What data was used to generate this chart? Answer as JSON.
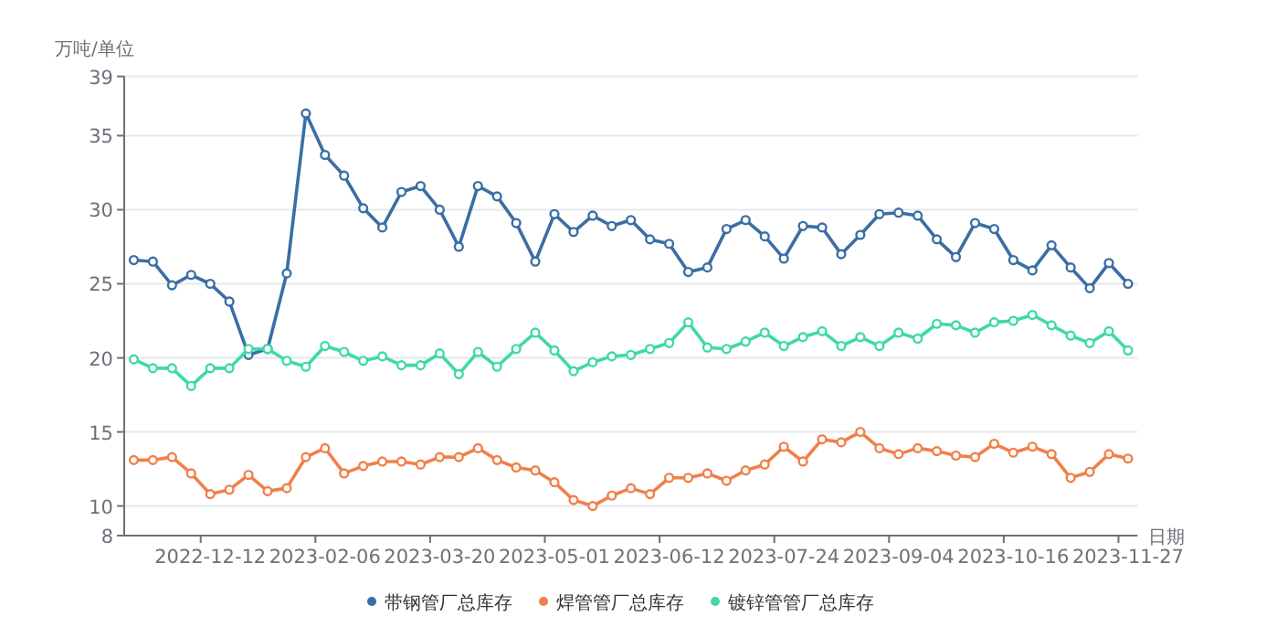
{
  "chart_data": {
    "type": "line",
    "ylabel": "万吨/单位",
    "xlabel": "日期",
    "categories": [
      null,
      null,
      null,
      null,
      "2022-12-12",
      null,
      null,
      null,
      null,
      null,
      "2023-02-06",
      null,
      null,
      null,
      null,
      null,
      "2023-03-20",
      null,
      null,
      null,
      null,
      null,
      "2023-05-01",
      null,
      null,
      null,
      null,
      null,
      "2023-06-12",
      null,
      null,
      null,
      null,
      null,
      "2023-07-24",
      null,
      null,
      null,
      null,
      null,
      "2023-09-04",
      null,
      null,
      null,
      null,
      null,
      "2023-10-16",
      null,
      null,
      null,
      null,
      null,
      "2023-11-27"
    ],
    "series": [
      {
        "name": "带钢管厂总库存",
        "color": "#3a6ea5",
        "values": [
          26.6,
          26.5,
          24.9,
          25.6,
          25.0,
          23.8,
          20.2,
          20.6,
          25.7,
          36.5,
          33.7,
          32.3,
          30.1,
          28.8,
          31.2,
          31.6,
          30.0,
          27.5,
          31.6,
          30.9,
          29.1,
          26.5,
          29.7,
          28.5,
          29.6,
          28.9,
          29.3,
          28.0,
          27.7,
          25.8,
          26.1,
          28.7,
          29.3,
          28.2,
          26.7,
          28.9,
          28.8,
          27.0,
          28.3,
          29.7,
          29.8,
          29.6,
          28.0,
          26.8,
          29.1,
          28.7,
          26.6,
          25.9,
          27.6,
          26.1,
          24.7,
          26.4,
          25.0
        ]
      },
      {
        "name": "焊管管厂总库存",
        "color": "#f0804a",
        "values": [
          13.1,
          13.1,
          13.3,
          12.2,
          10.8,
          11.1,
          12.1,
          11.0,
          11.2,
          13.3,
          13.9,
          12.2,
          12.7,
          13.0,
          13.0,
          12.8,
          13.3,
          13.3,
          13.9,
          13.1,
          12.6,
          12.4,
          11.6,
          10.4,
          10.0,
          10.7,
          11.2,
          10.8,
          11.9,
          11.9,
          12.2,
          11.7,
          12.4,
          12.8,
          14.0,
          13.0,
          14.5,
          14.3,
          15.0,
          13.9,
          13.5,
          13.9,
          13.7,
          13.4,
          13.3,
          14.2,
          13.6,
          14.0,
          13.5,
          11.9,
          12.3,
          13.5,
          13.2
        ]
      },
      {
        "name": "镀锌管管厂总库存",
        "color": "#3fd9a9",
        "values": [
          19.9,
          19.3,
          19.3,
          18.1,
          19.3,
          19.3,
          20.6,
          20.6,
          19.8,
          19.4,
          20.8,
          20.4,
          19.8,
          20.1,
          19.5,
          19.5,
          20.3,
          18.9,
          20.4,
          19.4,
          20.6,
          21.7,
          20.5,
          19.1,
          19.7,
          20.1,
          20.2,
          20.6,
          21.0,
          22.4,
          20.7,
          20.6,
          21.1,
          21.7,
          20.8,
          21.4,
          21.8,
          20.8,
          21.4,
          20.8,
          21.7,
          21.3,
          22.3,
          22.2,
          21.7,
          22.4,
          22.5,
          22.9,
          22.2,
          21.5,
          21.0,
          21.8,
          20.5
        ]
      }
    ],
    "ylim": [
      8,
      39
    ],
    "yticks": [
      8,
      10,
      15,
      20,
      25,
      30,
      35,
      39
    ],
    "grid": "y",
    "legend": "bottom",
    "marker": "circle"
  }
}
